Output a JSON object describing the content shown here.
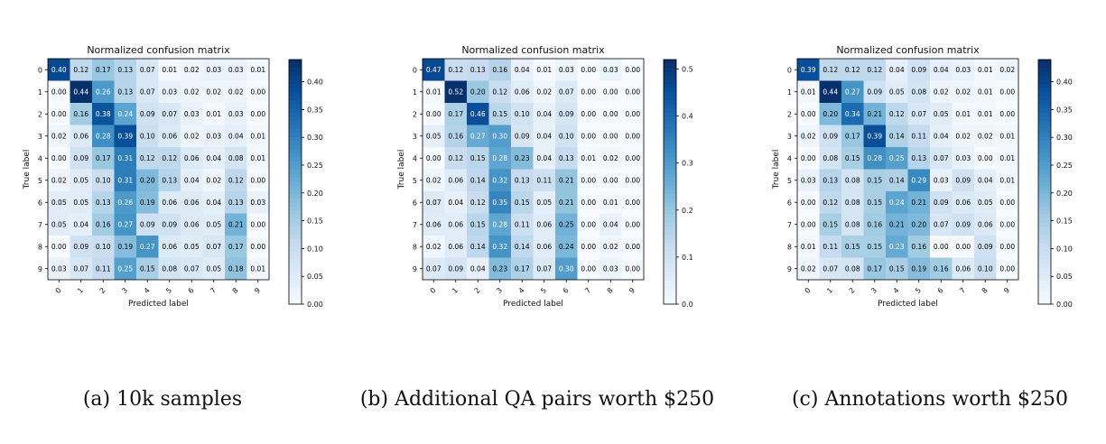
{
  "chart_data": [
    {
      "type": "heatmap",
      "title": "Normalized confusion matrix",
      "xlabel": "Predicted label",
      "ylabel": "True label",
      "x_labels": [
        "0",
        "1",
        "2",
        "3",
        "4",
        "5",
        "6",
        "7",
        "8",
        "9"
      ],
      "y_labels": [
        "0",
        "1",
        "2",
        "3",
        "4",
        "5",
        "6",
        "7",
        "8",
        "9"
      ],
      "colorbar": {
        "vmin": 0.0,
        "vmax": 0.44,
        "ticks": [
          "0.00",
          "0.05",
          "0.10",
          "0.15",
          "0.20",
          "0.25",
          "0.30",
          "0.35",
          "0.40"
        ]
      },
      "caption": "(a) 10k samples",
      "cell_labels": [
        [
          "0.40",
          "0.12",
          "0.17",
          "0.13",
          "0.07",
          "0.01",
          "0.02",
          "0.03",
          "0.03",
          "0.01"
        ],
        [
          "0.00",
          "0.44",
          "0.26",
          "0.13",
          "0.07",
          "0.03",
          "0.02",
          "0.02",
          "0.02",
          "0.00"
        ],
        [
          "0.00",
          "0.16",
          "0.38",
          "0.24",
          "0.09",
          "0.07",
          "0.03",
          "0.01",
          "0.03",
          "0.00"
        ],
        [
          "0.02",
          "0.06",
          "0.28",
          "0.39",
          "0.10",
          "0.06",
          "0.02",
          "0.03",
          "0.04",
          "0.01"
        ],
        [
          "0.00",
          "0.09",
          "0.17",
          "0.31",
          "0.12",
          "0.12",
          "0.06",
          "0.04",
          "0.08",
          "0.01"
        ],
        [
          "0.02",
          "0.05",
          "0.10",
          "0.31",
          "0.20",
          "0.13",
          "0.04",
          "0.02",
          "0.12",
          "0.00"
        ],
        [
          "0.05",
          "0.05",
          "0.13",
          "0.26",
          "0.19",
          "0.06",
          "0.06",
          "0.04",
          "0.13",
          "0.03"
        ],
        [
          "0.05",
          "0.04",
          "0.16",
          "0.27",
          "0.09",
          "0.09",
          "0.06",
          "0.05",
          "0.21",
          "0.00"
        ],
        [
          "0.00",
          "0.09",
          "0.10",
          "0.19",
          "0.27",
          "0.06",
          "0.05",
          "0.07",
          "0.17",
          "0.00"
        ],
        [
          "0.03",
          "0.07",
          "0.11",
          "0.25",
          "0.15",
          "0.08",
          "0.07",
          "0.05",
          "0.18",
          "0.01"
        ]
      ]
    },
    {
      "type": "heatmap",
      "title": "Normalized confusion matrix",
      "xlabel": "Predicted label",
      "ylabel": "True label",
      "x_labels": [
        "0",
        "1",
        "2",
        "3",
        "4",
        "5",
        "6",
        "7",
        "8",
        "9"
      ],
      "y_labels": [
        "0",
        "1",
        "2",
        "3",
        "4",
        "5",
        "6",
        "7",
        "8",
        "9"
      ],
      "colorbar": {
        "vmin": 0.0,
        "vmax": 0.52,
        "ticks": [
          "0.0",
          "0.1",
          "0.2",
          "0.3",
          "0.4",
          "0.5"
        ]
      },
      "caption": "(b) Additional QA pairs worth $250",
      "cell_labels": [
        [
          "0.47",
          "0.12",
          "0.13",
          "0.16",
          "0.04",
          "0.01",
          "0.03",
          "0.00",
          "0.03",
          "0.00"
        ],
        [
          "0.01",
          "0.52",
          "0.20",
          "0.12",
          "0.06",
          "0.02",
          "0.07",
          "0.00",
          "0.00",
          "0.00"
        ],
        [
          "0.00",
          "0.17",
          "0.46",
          "0.15",
          "0.10",
          "0.04",
          "0.09",
          "0.00",
          "0.00",
          "0.00"
        ],
        [
          "0.05",
          "0.16",
          "0.27",
          "0.30",
          "0.09",
          "0.04",
          "0.10",
          "0.00",
          "0.00",
          "0.00"
        ],
        [
          "0.00",
          "0.12",
          "0.15",
          "0.28",
          "0.23",
          "0.04",
          "0.13",
          "0.01",
          "0.02",
          "0.00"
        ],
        [
          "0.02",
          "0.06",
          "0.14",
          "0.32",
          "0.13",
          "0.11",
          "0.21",
          "0.00",
          "0.00",
          "0.00"
        ],
        [
          "0.07",
          "0.04",
          "0.12",
          "0.35",
          "0.15",
          "0.05",
          "0.21",
          "0.00",
          "0.01",
          "0.00"
        ],
        [
          "0.06",
          "0.06",
          "0.15",
          "0.28",
          "0.11",
          "0.06",
          "0.25",
          "0.00",
          "0.04",
          "0.00"
        ],
        [
          "0.02",
          "0.06",
          "0.14",
          "0.32",
          "0.14",
          "0.06",
          "0.24",
          "0.00",
          "0.02",
          "0.00"
        ],
        [
          "0.07",
          "0.09",
          "0.04",
          "0.23",
          "0.17",
          "0.07",
          "0.30",
          "0.00",
          "0.03",
          "0.00"
        ]
      ]
    },
    {
      "type": "heatmap",
      "title": "Normalized confusion matrix",
      "xlabel": "Predicted label",
      "ylabel": "True label",
      "x_labels": [
        "0",
        "1",
        "2",
        "3",
        "4",
        "5",
        "6",
        "7",
        "8",
        "9"
      ],
      "y_labels": [
        "0",
        "1",
        "2",
        "3",
        "4",
        "5",
        "6",
        "7",
        "8",
        "9"
      ],
      "colorbar": {
        "vmin": 0.0,
        "vmax": 0.44,
        "ticks": [
          "0.00",
          "0.05",
          "0.10",
          "0.15",
          "0.20",
          "0.25",
          "0.30",
          "0.35",
          "0.40"
        ]
      },
      "caption": "(c) Annotations worth $250",
      "cell_labels": [
        [
          "0.39",
          "0.12",
          "0.12",
          "0.12",
          "0.04",
          "0.09",
          "0.04",
          "0.03",
          "0.01",
          "0.02"
        ],
        [
          "0.01",
          "0.44",
          "0.27",
          "0.09",
          "0.05",
          "0.08",
          "0.02",
          "0.02",
          "0.01",
          "0.00"
        ],
        [
          "0.00",
          "0.20",
          "0.34",
          "0.21",
          "0.12",
          "0.07",
          "0.05",
          "0.01",
          "0.01",
          "0.00"
        ],
        [
          "0.02",
          "0.09",
          "0.17",
          "0.39",
          "0.14",
          "0.11",
          "0.04",
          "0.02",
          "0.02",
          "0.01"
        ],
        [
          "0.00",
          "0.08",
          "0.15",
          "0.28",
          "0.25",
          "0.13",
          "0.07",
          "0.03",
          "0.00",
          "0.01"
        ],
        [
          "0.03",
          "0.13",
          "0.08",
          "0.15",
          "0.14",
          "0.29",
          "0.03",
          "0.09",
          "0.04",
          "0.01"
        ],
        [
          "0.00",
          "0.12",
          "0.08",
          "0.15",
          "0.24",
          "0.21",
          "0.09",
          "0.06",
          "0.05",
          "0.00"
        ],
        [
          "0.00",
          "0.15",
          "0.08",
          "0.16",
          "0.21",
          "0.20",
          "0.07",
          "0.09",
          "0.06",
          "0.00"
        ],
        [
          "0.01",
          "0.11",
          "0.15",
          "0.15",
          "0.23",
          "0.16",
          "0.00",
          "0.00",
          "0.09",
          "0.00"
        ],
        [
          "0.02",
          "0.07",
          "0.08",
          "0.17",
          "0.15",
          "0.19",
          "0.16",
          "0.06",
          "0.10",
          "0.00"
        ]
      ]
    }
  ]
}
